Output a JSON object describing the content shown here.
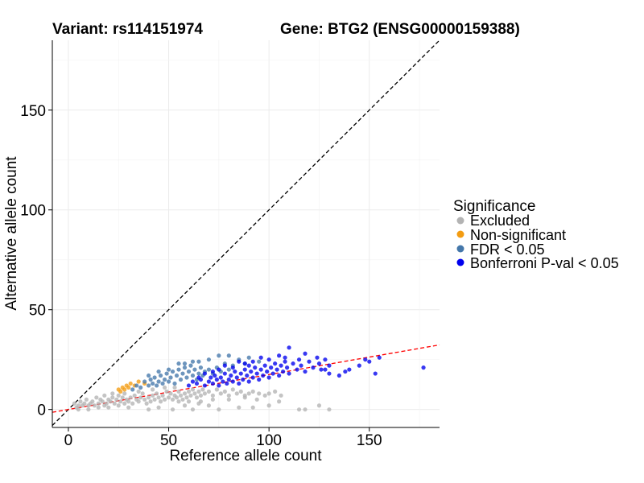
{
  "chart_data": {
    "type": "scatter",
    "title_variant": "Variant: rs114151974",
    "title_gene": "Gene: BTG2 (ENSG00000159388)",
    "xlabel": "Reference allele count",
    "ylabel": "Alternative allele count",
    "xlim": [
      -8,
      185
    ],
    "ylim": [
      -9,
      185
    ],
    "xticks": [
      0,
      50,
      100,
      150
    ],
    "yticks": [
      0,
      50,
      100,
      150
    ],
    "grid": true,
    "legend": {
      "title": "Significance",
      "position": "right",
      "entries": [
        {
          "label": "Excluded",
          "color": "#b3b3b3"
        },
        {
          "label": "Non-significant",
          "color": "#f39c12"
        },
        {
          "label": "FDR < 0.05",
          "color": "#4477aa"
        },
        {
          "label": "Bonferroni P-val < 0.05",
          "color": "#0000ee"
        }
      ]
    },
    "reference_lines": [
      {
        "name": "identity",
        "style": "dashed",
        "color": "#000000",
        "slope": 1,
        "intercept": 0
      },
      {
        "name": "fit",
        "style": "dashed",
        "color": "#ff0000",
        "slope": 0.175,
        "intercept": 0
      }
    ],
    "series": [
      {
        "name": "Excluded",
        "color": "#b3b3b3",
        "points": [
          [
            3,
            3
          ],
          [
            4,
            1
          ],
          [
            5,
            2
          ],
          [
            6,
            4
          ],
          [
            7,
            2
          ],
          [
            8,
            3
          ],
          [
            9,
            5
          ],
          [
            10,
            2
          ],
          [
            11,
            3
          ],
          [
            12,
            4
          ],
          [
            13,
            2
          ],
          [
            14,
            6
          ],
          [
            15,
            3
          ],
          [
            16,
            5
          ],
          [
            17,
            4
          ],
          [
            18,
            2
          ],
          [
            19,
            3
          ],
          [
            20,
            5
          ],
          [
            21,
            4
          ],
          [
            22,
            6
          ],
          [
            23,
            3
          ],
          [
            24,
            5
          ],
          [
            25,
            7
          ],
          [
            26,
            4
          ],
          [
            27,
            6
          ],
          [
            28,
            3
          ],
          [
            29,
            5
          ],
          [
            30,
            4
          ],
          [
            31,
            6
          ],
          [
            32,
            3
          ],
          [
            33,
            7
          ],
          [
            34,
            5
          ],
          [
            35,
            4
          ],
          [
            36,
            6
          ],
          [
            37,
            8
          ],
          [
            38,
            5
          ],
          [
            39,
            3
          ],
          [
            40,
            6
          ],
          [
            41,
            4
          ],
          [
            42,
            7
          ],
          [
            43,
            5
          ],
          [
            44,
            8
          ],
          [
            45,
            6
          ],
          [
            46,
            4
          ],
          [
            47,
            7
          ],
          [
            48,
            5
          ],
          [
            49,
            9
          ],
          [
            50,
            6
          ],
          [
            51,
            8
          ],
          [
            52,
            5
          ],
          [
            53,
            7
          ],
          [
            54,
            6
          ],
          [
            55,
            9
          ],
          [
            56,
            7
          ],
          [
            57,
            5
          ],
          [
            58,
            8
          ],
          [
            59,
            6
          ],
          [
            60,
            9
          ],
          [
            61,
            7
          ],
          [
            62,
            10
          ],
          [
            63,
            8
          ],
          [
            64,
            6
          ],
          [
            65,
            9
          ],
          [
            66,
            7
          ],
          [
            67,
            10
          ],
          [
            68,
            8
          ],
          [
            70,
            9
          ],
          [
            72,
            7
          ],
          [
            74,
            10
          ],
          [
            76,
            8
          ],
          [
            78,
            9
          ],
          [
            80,
            7
          ],
          [
            82,
            10
          ],
          [
            84,
            8
          ],
          [
            86,
            9
          ],
          [
            88,
            7
          ],
          [
            90,
            8
          ],
          [
            92,
            9
          ],
          [
            95,
            8
          ],
          [
            98,
            7
          ],
          [
            100,
            8
          ],
          [
            103,
            9
          ],
          [
            106,
            7
          ],
          [
            5,
            0
          ],
          [
            10,
            0
          ],
          [
            15,
            1
          ],
          [
            20,
            1
          ],
          [
            25,
            2
          ],
          [
            30,
            1
          ],
          [
            40,
            0
          ],
          [
            45,
            1
          ],
          [
            52,
            0
          ],
          [
            58,
            2
          ],
          [
            62,
            0
          ],
          [
            65,
            3
          ],
          [
            70,
            2
          ],
          [
            75,
            0
          ],
          [
            85,
            1
          ],
          [
            92,
            1
          ],
          [
            100,
            2
          ],
          [
            105,
            4
          ],
          [
            115,
            0
          ],
          [
            118,
            0
          ],
          [
            125,
            2
          ],
          [
            130,
            0
          ],
          [
            18,
            7
          ],
          [
            22,
            8
          ],
          [
            28,
            8
          ],
          [
            35,
            9
          ],
          [
            42,
            10
          ],
          [
            48,
            11
          ],
          [
            53,
            11
          ],
          [
            55,
            4
          ],
          [
            60,
            4
          ],
          [
            66,
            4
          ],
          [
            72,
            5
          ],
          [
            80,
            5
          ],
          [
            88,
            6
          ],
          [
            94,
            5
          ]
        ]
      },
      {
        "name": "Non-significant",
        "color": "#f39c12",
        "points": [
          [
            25,
            10
          ],
          [
            26,
            9
          ],
          [
            27,
            11
          ],
          [
            28,
            10
          ],
          [
            29,
            12
          ],
          [
            30,
            11
          ],
          [
            31,
            13
          ],
          [
            33,
            12
          ],
          [
            35,
            14
          ],
          [
            38,
            13
          ]
        ]
      },
      {
        "name": "FDR < 0.05",
        "color": "#4477aa",
        "points": [
          [
            32,
            10
          ],
          [
            34,
            12
          ],
          [
            36,
            11
          ],
          [
            38,
            14
          ],
          [
            40,
            12
          ],
          [
            41,
            15
          ],
          [
            42,
            13
          ],
          [
            43,
            16
          ],
          [
            44,
            12
          ],
          [
            45,
            14
          ],
          [
            46,
            17
          ],
          [
            47,
            13
          ],
          [
            48,
            15
          ],
          [
            49,
            18
          ],
          [
            50,
            14
          ],
          [
            51,
            16
          ],
          [
            52,
            19
          ],
          [
            53,
            13
          ],
          [
            54,
            17
          ],
          [
            55,
            20
          ],
          [
            56,
            15
          ],
          [
            57,
            18
          ],
          [
            58,
            21
          ],
          [
            59,
            16
          ],
          [
            60,
            19
          ],
          [
            61,
            22
          ],
          [
            62,
            17
          ],
          [
            63,
            20
          ],
          [
            64,
            15
          ],
          [
            65,
            18
          ],
          [
            66,
            21
          ],
          [
            67,
            17
          ],
          [
            68,
            19
          ],
          [
            70,
            20
          ],
          [
            72,
            18
          ],
          [
            74,
            21
          ],
          [
            76,
            19
          ],
          [
            78,
            23
          ],
          [
            80,
            20
          ],
          [
            82,
            22
          ],
          [
            85,
            25
          ],
          [
            88,
            23
          ],
          [
            90,
            26
          ],
          [
            95,
            24
          ],
          [
            58,
            23
          ],
          [
            65,
            24
          ],
          [
            70,
            25
          ],
          [
            75,
            27
          ],
          [
            80,
            27
          ],
          [
            50,
            20
          ],
          [
            45,
            19
          ],
          [
            40,
            17
          ],
          [
            55,
            23
          ],
          [
            62,
            24
          ]
        ]
      },
      {
        "name": "Bonferroni P-val < 0.05",
        "color": "#0000ee",
        "points": [
          [
            60,
            12
          ],
          [
            62,
            14
          ],
          [
            64,
            13
          ],
          [
            66,
            15
          ],
          [
            68,
            12
          ],
          [
            70,
            14
          ],
          [
            71,
            16
          ],
          [
            72,
            13
          ],
          [
            73,
            17
          ],
          [
            74,
            15
          ],
          [
            75,
            12
          ],
          [
            76,
            16
          ],
          [
            77,
            14
          ],
          [
            78,
            18
          ],
          [
            79,
            13
          ],
          [
            80,
            15
          ],
          [
            81,
            17
          ],
          [
            82,
            14
          ],
          [
            83,
            19
          ],
          [
            84,
            16
          ],
          [
            85,
            13
          ],
          [
            86,
            18
          ],
          [
            87,
            15
          ],
          [
            88,
            20
          ],
          [
            89,
            17
          ],
          [
            90,
            14
          ],
          [
            91,
            19
          ],
          [
            92,
            16
          ],
          [
            93,
            21
          ],
          [
            94,
            18
          ],
          [
            95,
            15
          ],
          [
            96,
            20
          ],
          [
            97,
            17
          ],
          [
            98,
            22
          ],
          [
            99,
            19
          ],
          [
            100,
            16
          ],
          [
            101,
            21
          ],
          [
            102,
            18
          ],
          [
            103,
            23
          ],
          [
            104,
            20
          ],
          [
            105,
            17
          ],
          [
            106,
            22
          ],
          [
            107,
            19
          ],
          [
            108,
            24
          ],
          [
            109,
            21
          ],
          [
            110,
            18
          ],
          [
            112,
            23
          ],
          [
            114,
            20
          ],
          [
            115,
            25
          ],
          [
            116,
            22
          ],
          [
            118,
            19
          ],
          [
            120,
            24
          ],
          [
            122,
            21
          ],
          [
            124,
            26
          ],
          [
            125,
            23
          ],
          [
            126,
            20
          ],
          [
            128,
            25
          ],
          [
            130,
            22
          ],
          [
            110,
            31
          ],
          [
            118,
            28
          ],
          [
            108,
            26
          ],
          [
            105,
            27
          ],
          [
            100,
            25
          ],
          [
            96,
            26
          ],
          [
            92,
            24
          ],
          [
            88,
            23
          ],
          [
            128,
            20
          ],
          [
            130,
            18
          ],
          [
            135,
            17
          ],
          [
            138,
            19
          ],
          [
            140,
            20
          ],
          [
            145,
            22
          ],
          [
            148,
            25
          ],
          [
            150,
            24
          ],
          [
            153,
            18
          ],
          [
            155,
            26
          ],
          [
            177,
            21
          ],
          [
            65,
            16
          ],
          [
            68,
            18
          ],
          [
            72,
            19
          ],
          [
            75,
            20
          ],
          [
            78,
            22
          ],
          [
            82,
            21
          ],
          [
            85,
            24
          ],
          [
            90,
            22
          ]
        ]
      }
    ]
  }
}
